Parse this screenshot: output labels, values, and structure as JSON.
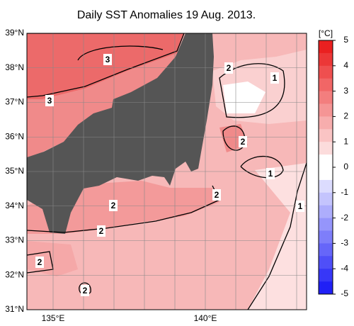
{
  "map": {
    "title": "Daily SST Anomalies 19 Aug. 2013.",
    "lat_labels": [
      "39°N",
      "38°N",
      "37°N",
      "36°N",
      "35°N",
      "34°N",
      "33°N",
      "32°N",
      "31°N"
    ],
    "lon_labels": [
      "135°E",
      "140°E"
    ],
    "colorbar": {
      "unit": "[°C]",
      "ticks": [
        5,
        4,
        3,
        2,
        1,
        0,
        -1,
        -2,
        -3,
        -4,
        -5
      ]
    },
    "contour_labels": [
      3,
      3,
      2,
      1,
      2,
      1,
      2,
      2,
      1,
      2,
      2,
      2
    ]
  }
}
